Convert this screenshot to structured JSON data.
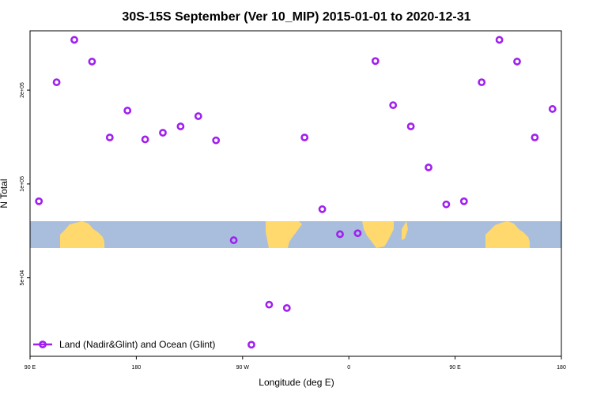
{
  "chart_data": {
    "type": "scatter",
    "title": "30S-15S September (Ver 10_MIP)   2015-01-01 to 2020-12-31",
    "xlabel": "Longitude (deg E)",
    "ylabel": "N Total",
    "x_axis_labels": [
      {
        "x": 90,
        "label": "90 E"
      },
      {
        "x": 180,
        "label": "180"
      },
      {
        "x": 270,
        "label": "90 W"
      },
      {
        "x": 360,
        "label": "0"
      },
      {
        "x": 450,
        "label": "90 E"
      },
      {
        "x": 540,
        "label": "180"
      }
    ],
    "y_axis_labels": [
      {
        "y": 50000,
        "label": "5e+04"
      },
      {
        "y": 100000,
        "label": "1e+05"
      },
      {
        "y": 200000,
        "label": "2e+05"
      }
    ],
    "xlim": [
      90,
      540
    ],
    "ylim": [
      28000,
      310000
    ],
    "y_scale": "log",
    "series": [
      {
        "name": "Land (Nadir&Glint) and Ocean (Glint)",
        "color": "#a020f0",
        "marker": "open-circle",
        "x": [
          97.5,
          112.5,
          127.5,
          142.5,
          157.5,
          172.5,
          187.5,
          202.5,
          217.5,
          232.5,
          247.5,
          262.5,
          277.5,
          292.5,
          307.5,
          322.5,
          337.5,
          352.5,
          367.5,
          382.5,
          397.5,
          412.5,
          427.5,
          442.5,
          457.5,
          472.5,
          487.5,
          502.5,
          517.5,
          532.5
        ],
        "y": [
          88000,
          212000,
          290000,
          247000,
          141000,
          172000,
          139000,
          146000,
          153000,
          165000,
          138000,
          66000,
          30500,
          41000,
          40000,
          141000,
          83000,
          69000,
          69500,
          248000,
          179000,
          153000,
          113000,
          86000,
          88000,
          212000,
          290000,
          247000,
          141000,
          174000
        ]
      }
    ],
    "legend": {
      "placement": "bottom-left"
    },
    "grid": false,
    "colors": {
      "land": "#ffd86e",
      "ocean": "#a8bedc",
      "marker": "#a020f0"
    }
  }
}
